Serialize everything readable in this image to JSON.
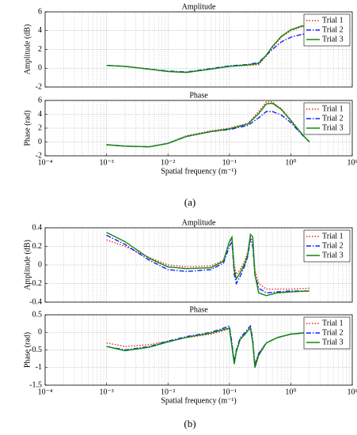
{
  "chart_data": [
    {
      "type": "line",
      "title": "Amplitude",
      "ylabel": "Amplitude (dB)",
      "xscale": "log",
      "xlim": [
        0.0001,
        10
      ],
      "ylim": [
        -2,
        6
      ],
      "yticks": [
        -2,
        0,
        2,
        4,
        6
      ],
      "grid": true,
      "legend": "upper right",
      "x": [
        0.001,
        0.002,
        0.005,
        0.01,
        0.02,
        0.05,
        0.1,
        0.2,
        0.3,
        0.4,
        0.5,
        0.7,
        1,
        1.5,
        2
      ],
      "series": [
        {
          "name": "Trial 1",
          "color": "#e8291c",
          "style": "dotted",
          "values": [
            0.3,
            0.2,
            -0.1,
            -0.35,
            -0.45,
            -0.1,
            0.2,
            0.3,
            0.4,
            1.3,
            2.2,
            3.3,
            4.0,
            4.4,
            4.4
          ]
        },
        {
          "name": "Trial 2",
          "color": "#1a1aff",
          "style": "dashdot",
          "values": [
            0.3,
            0.2,
            -0.1,
            -0.3,
            -0.4,
            -0.05,
            0.25,
            0.4,
            0.6,
            1.4,
            2.0,
            2.8,
            3.3,
            3.6,
            3.7
          ]
        },
        {
          "name": "Trial 3",
          "color": "#0a8a0a",
          "style": "solid",
          "values": [
            0.3,
            0.2,
            -0.1,
            -0.35,
            -0.45,
            -0.1,
            0.2,
            0.35,
            0.5,
            1.4,
            2.3,
            3.4,
            4.1,
            4.5,
            4.5
          ]
        }
      ]
    },
    {
      "type": "line",
      "title": "Phase",
      "ylabel": "Phase (rad)",
      "xlabel": "Spatial frequency (m⁻¹)",
      "xscale": "log",
      "xlim": [
        0.0001,
        10
      ],
      "xticks": [
        {
          "value": 0.0001,
          "label": "10⁻⁴"
        },
        {
          "value": 0.001,
          "label": "10⁻³"
        },
        {
          "value": 0.01,
          "label": "10⁻²"
        },
        {
          "value": 0.1,
          "label": "10⁻¹"
        },
        {
          "value": 1,
          "label": "10⁰"
        },
        {
          "value": 10,
          "label": "10¹"
        }
      ],
      "ylim": [
        -2,
        6
      ],
      "yticks": [
        -2,
        0,
        2,
        4,
        6
      ],
      "grid": true,
      "legend": "upper right",
      "x": [
        0.001,
        0.002,
        0.005,
        0.01,
        0.02,
        0.05,
        0.1,
        0.2,
        0.3,
        0.4,
        0.5,
        0.7,
        1,
        1.5,
        2
      ],
      "series": [
        {
          "name": "Trial 1",
          "color": "#e8291c",
          "style": "dotted",
          "values": [
            -0.4,
            -0.6,
            -0.7,
            -0.2,
            0.9,
            1.6,
            2.0,
            2.7,
            4.4,
            5.8,
            5.8,
            4.8,
            3.2,
            1.2,
            0
          ]
        },
        {
          "name": "Trial 2",
          "color": "#1a1aff",
          "style": "dashdot",
          "values": [
            -0.4,
            -0.6,
            -0.7,
            -0.2,
            0.8,
            1.5,
            1.8,
            2.4,
            3.5,
            4.4,
            4.4,
            3.9,
            2.8,
            1.1,
            0
          ]
        },
        {
          "name": "Trial 3",
          "color": "#0a8a0a",
          "style": "solid",
          "values": [
            -0.4,
            -0.6,
            -0.7,
            -0.2,
            0.8,
            1.5,
            1.9,
            2.6,
            4.1,
            5.5,
            5.6,
            4.7,
            3.1,
            1.2,
            0
          ]
        }
      ]
    },
    {
      "type": "line",
      "title": "Amplitude",
      "ylabel": "Amplitude (dB)",
      "xscale": "log",
      "xlim": [
        0.0001,
        10
      ],
      "ylim": [
        -0.4,
        0.4
      ],
      "yticks": [
        -0.4,
        -0.2,
        0,
        0.2,
        0.4
      ],
      "grid": true,
      "legend": "upper right",
      "x": [
        0.001,
        0.002,
        0.005,
        0.01,
        0.02,
        0.05,
        0.08,
        0.1,
        0.11,
        0.12,
        0.13,
        0.15,
        0.18,
        0.2,
        0.22,
        0.24,
        0.26,
        0.3,
        0.4,
        0.6,
        1,
        2
      ],
      "series": [
        {
          "name": "Trial 1",
          "color": "#e8291c",
          "style": "dotted",
          "values": [
            0.27,
            0.2,
            0.08,
            0.0,
            -0.02,
            -0.01,
            0.05,
            0.25,
            0.28,
            0.0,
            -0.1,
            -0.05,
            0.05,
            0.15,
            0.3,
            0.25,
            -0.05,
            -0.2,
            -0.26,
            -0.26,
            -0.26,
            -0.25
          ]
        },
        {
          "name": "Trial 2",
          "color": "#1a1aff",
          "style": "dashdot",
          "values": [
            0.32,
            0.22,
            0.05,
            -0.05,
            -0.07,
            -0.05,
            0.02,
            0.2,
            0.25,
            -0.1,
            -0.2,
            -0.12,
            0.0,
            0.1,
            0.28,
            0.2,
            -0.1,
            -0.25,
            -0.3,
            -0.29,
            -0.28,
            -0.28
          ]
        },
        {
          "name": "Trial 3",
          "color": "#0a8a0a",
          "style": "solid",
          "values": [
            0.35,
            0.25,
            0.07,
            -0.02,
            -0.04,
            -0.03,
            0.04,
            0.25,
            0.3,
            -0.05,
            -0.15,
            -0.08,
            0.02,
            0.12,
            0.33,
            0.3,
            -0.1,
            -0.3,
            -0.33,
            -0.3,
            -0.29,
            -0.28
          ]
        }
      ]
    },
    {
      "type": "line",
      "title": "Phase",
      "ylabel": "Phase (rad)",
      "xlabel": "Spatial frequency (m⁻¹)",
      "xscale": "log",
      "xlim": [
        0.0001,
        10
      ],
      "xticks": [
        {
          "value": 0.0001,
          "label": "10⁻⁴"
        },
        {
          "value": 0.001,
          "label": "10⁻³"
        },
        {
          "value": 0.01,
          "label": "10⁻²"
        },
        {
          "value": 0.1,
          "label": "10⁻¹"
        },
        {
          "value": 1,
          "label": "10⁰"
        },
        {
          "value": 10,
          "label": "10¹"
        }
      ],
      "ylim": [
        -1.5,
        0.5
      ],
      "yticks": [
        -1.5,
        -1,
        -0.5,
        0,
        0.5
      ],
      "grid": true,
      "legend": "upper right",
      "x": [
        0.001,
        0.002,
        0.005,
        0.01,
        0.02,
        0.05,
        0.08,
        0.1,
        0.11,
        0.12,
        0.13,
        0.15,
        0.18,
        0.2,
        0.22,
        0.24,
        0.26,
        0.3,
        0.4,
        0.6,
        1,
        2
      ],
      "series": [
        {
          "name": "Trial 1",
          "color": "#e8291c",
          "style": "dotted",
          "values": [
            -0.3,
            -0.4,
            -0.35,
            -0.25,
            -0.15,
            -0.05,
            0.05,
            0.1,
            -0.4,
            -0.85,
            -0.5,
            -0.2,
            -0.05,
            0.05,
            0.1,
            -0.3,
            -0.9,
            -0.6,
            -0.3,
            -0.15,
            -0.05,
            0
          ]
        },
        {
          "name": "Trial 2",
          "color": "#1a1aff",
          "style": "dashdot",
          "values": [
            -0.4,
            -0.5,
            -0.4,
            -0.25,
            -0.12,
            0,
            0.12,
            0.18,
            -0.3,
            -0.85,
            -0.5,
            -0.15,
            0,
            0.1,
            0.18,
            -0.2,
            -0.95,
            -0.6,
            -0.3,
            -0.15,
            -0.05,
            0
          ]
        },
        {
          "name": "Trial 3",
          "color": "#0a8a0a",
          "style": "solid",
          "values": [
            -0.4,
            -0.52,
            -0.42,
            -0.27,
            -0.14,
            -0.02,
            0.08,
            0.12,
            -0.4,
            -0.9,
            -0.55,
            -0.2,
            -0.05,
            0.05,
            0.12,
            -0.3,
            -1.0,
            -0.65,
            -0.3,
            -0.15,
            -0.05,
            0
          ]
        }
      ]
    }
  ],
  "captions": [
    "(a)",
    "(b)"
  ]
}
